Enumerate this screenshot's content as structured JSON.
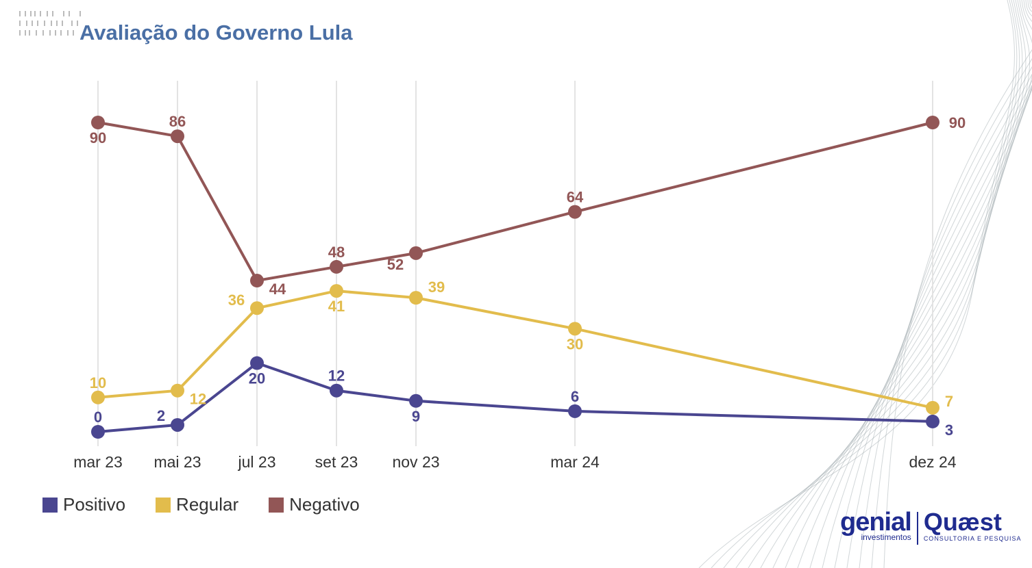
{
  "title": "Avaliação do Governo Lula",
  "colors": {
    "positivo": "#4a4690",
    "regular": "#e2bc4c",
    "negativo": "#925656",
    "title": "#4a6fa5"
  },
  "chart_data": {
    "type": "line",
    "title": "Avaliação do Governo Lula",
    "categories": [
      "mar 23",
      "mai 23",
      "jul 23",
      "set 23",
      "nov 23",
      "mar 24",
      "dez 24"
    ],
    "time_index": [
      0,
      2,
      4,
      6,
      8,
      12,
      21
    ],
    "series": [
      {
        "name": "Positivo",
        "color": "#4a4690",
        "values": [
          0,
          2,
          20,
          12,
          9,
          6,
          3
        ]
      },
      {
        "name": "Regular",
        "color": "#e2bc4c",
        "values": [
          10,
          12,
          36,
          41,
          39,
          30,
          7
        ]
      },
      {
        "name": "Negativo",
        "color": "#925656",
        "values": [
          90,
          86,
          44,
          48,
          52,
          64,
          90
        ]
      }
    ],
    "ylim": [
      0,
      90
    ],
    "legend": "bottom-left",
    "grid": "vertical"
  },
  "legend": [
    {
      "label": "Positivo",
      "color": "#4a4690"
    },
    {
      "label": "Regular",
      "color": "#e2bc4c"
    },
    {
      "label": "Negativo",
      "color": "#925656"
    }
  ],
  "logos": {
    "genial": "genial",
    "genial_sub": "investimentos",
    "quaest": "Quæst",
    "quaest_sub": "CONSULTORIA E PESQUISA"
  }
}
